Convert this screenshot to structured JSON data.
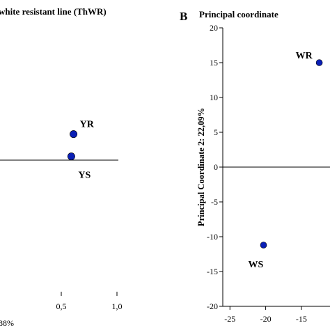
{
  "panel_a": {
    "title": "white resistant line (ThWR)",
    "x_axis_fragment": "88%"
  },
  "panel_b": {
    "letter": "B",
    "title": "Principal coordinate"
  },
  "colors": {
    "point": "#0a1fb5",
    "axis": "#000000",
    "zero_line": "#000000"
  },
  "chart_data": [
    {
      "type": "scatter",
      "title": "white resistant line (ThWR)",
      "xlabel": "88%",
      "ylabel": "",
      "xlim": [
        -0.05,
        1.0
      ],
      "ylim": [
        -1.0,
        1.0
      ],
      "x_ticks": [
        0.5,
        1.0
      ],
      "x_tick_labels": [
        "0,5",
        "1,0"
      ],
      "grid": false,
      "points": [
        {
          "label": "YR",
          "x": 0.61,
          "y": 0.21
        },
        {
          "label": "YS",
          "x": 0.59,
          "y": 0.03
        }
      ]
    },
    {
      "type": "scatter",
      "title": "Principal coordinate",
      "xlabel": "",
      "ylabel": "Principal Coordinate 2: 22,09%",
      "xlim": [
        -26,
        -11
      ],
      "ylim": [
        -20,
        20
      ],
      "x_ticks": [
        -25,
        -20,
        -15
      ],
      "x_tick_labels": [
        "-25",
        "-20",
        "-15"
      ],
      "y_ticks": [
        20,
        15,
        10,
        5,
        0,
        -5,
        -10,
        -15,
        -20
      ],
      "y_tick_labels": [
        "20",
        "15",
        "10",
        "5",
        "0",
        "-5",
        "-10",
        "-15",
        "-20"
      ],
      "grid": false,
      "points": [
        {
          "label": "WR",
          "x": -12.5,
          "y": 15
        },
        {
          "label": "WS",
          "x": -20.3,
          "y": -11.2
        }
      ]
    }
  ]
}
